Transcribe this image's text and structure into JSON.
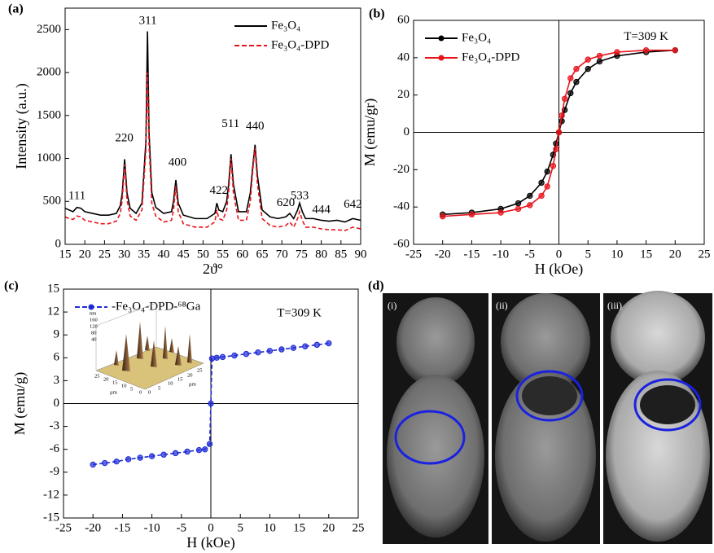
{
  "chart_data": [
    {
      "type": "line",
      "label": "(a)",
      "xlabel": "2ϑ°",
      "ylabel": "Intensity (a.u.)",
      "xlim": [
        15,
        90
      ],
      "xticks": [
        15,
        20,
        25,
        30,
        35,
        40,
        45,
        50,
        55,
        60,
        65,
        70,
        75,
        80,
        85,
        90
      ],
      "ylim": [
        0,
        2750
      ],
      "yticks": [
        0,
        500,
        1000,
        1500,
        2000,
        2500
      ],
      "legend": "upper right",
      "markers": false,
      "zero_lines": false,
      "x": [
        15,
        16,
        17,
        18,
        19,
        20,
        22,
        24,
        26,
        28,
        29,
        29.5,
        30.1,
        30.7,
        31.5,
        33,
        34.5,
        35.5,
        35.9,
        36.3,
        37,
        38,
        40,
        42,
        42.5,
        43.1,
        43.7,
        45,
        48,
        51,
        53,
        53.5,
        54,
        55,
        56,
        56.5,
        57.1,
        57.7,
        59,
        61,
        62,
        62.6,
        63.2,
        63.8,
        65,
        67,
        69,
        71,
        72,
        73,
        74,
        74.5,
        75.2,
        76,
        78,
        80,
        82,
        84,
        86,
        88,
        90
      ],
      "series": [
        {
          "name": "Fe₃O₄",
          "color": "#000000",
          "dash": false,
          "values": [
            420,
            400,
            380,
            430,
            420,
            380,
            360,
            340,
            340,
            360,
            450,
            600,
            990,
            600,
            420,
            360,
            480,
            1200,
            2480,
            1300,
            600,
            430,
            360,
            380,
            500,
            750,
            480,
            340,
            300,
            300,
            360,
            480,
            400,
            380,
            500,
            700,
            1050,
            700,
            380,
            380,
            600,
            900,
            1160,
            800,
            400,
            320,
            300,
            320,
            360,
            300,
            400,
            480,
            380,
            300,
            300,
            280,
            270,
            280,
            260,
            300,
            280
          ]
        },
        {
          "name": "Fe₃O₄-DPD",
          "color": "#e8141c",
          "dash": true,
          "values": [
            320,
            300,
            290,
            330,
            320,
            280,
            260,
            240,
            240,
            270,
            360,
            520,
            930,
            520,
            330,
            280,
            400,
            1100,
            2000,
            1150,
            480,
            330,
            260,
            280,
            400,
            680,
            380,
            240,
            200,
            200,
            260,
            400,
            300,
            280,
            400,
            620,
            1000,
            600,
            280,
            280,
            500,
            850,
            1120,
            700,
            300,
            220,
            200,
            220,
            260,
            200,
            300,
            380,
            280,
            200,
            200,
            180,
            170,
            170,
            160,
            200,
            180
          ]
        }
      ],
      "annotations": [
        {
          "text": "111",
          "x": 18,
          "y": 560
        },
        {
          "text": "220",
          "x": 30,
          "y": 1230
        },
        {
          "text": "311",
          "x": 36,
          "y": 2600
        },
        {
          "text": "400",
          "x": 43.5,
          "y": 950
        },
        {
          "text": "422",
          "x": 54,
          "y": 620
        },
        {
          "text": "511",
          "x": 57,
          "y": 1400
        },
        {
          "text": "440",
          "x": 63.2,
          "y": 1370
        },
        {
          "text": "620",
          "x": 71,
          "y": 480
        },
        {
          "text": "533",
          "x": 74.5,
          "y": 560
        },
        {
          "text": "444",
          "x": 80,
          "y": 400
        },
        {
          "text": "642",
          "x": 88,
          "y": 460
        }
      ]
    },
    {
      "type": "line",
      "label": "(b)",
      "xlabel": "H (kOe)",
      "ylabel": "M (emu/gr)",
      "xlim": [
        -25,
        25
      ],
      "xticks": [
        -25,
        -20,
        -15,
        -10,
        -5,
        0,
        5,
        10,
        15,
        20,
        25
      ],
      "ylim": [
        -60,
        60
      ],
      "yticks": [
        -60,
        -40,
        -20,
        0,
        20,
        40,
        60
      ],
      "legend": "upper left",
      "markers": true,
      "zero_lines": true,
      "x": [
        -20,
        -15,
        -10,
        -7,
        -5,
        -3,
        -2,
        -1,
        -0.5,
        0,
        0.5,
        1,
        2,
        3,
        5,
        7,
        10,
        15,
        20
      ],
      "series": [
        {
          "name": "Fe₃O₄",
          "color": "#000000",
          "dash": false,
          "values": [
            -44,
            -43,
            -41,
            -38,
            -34,
            -27,
            -21,
            -12,
            -6,
            0,
            6,
            12,
            21,
            27,
            34,
            38,
            41,
            43,
            44
          ]
        },
        {
          "name": "Fe₃O₄-DPD",
          "color": "#e8141c",
          "dash": false,
          "values": [
            -45,
            -44,
            -43,
            -41,
            -39,
            -34,
            -29,
            -18,
            -9,
            0,
            9,
            18,
            29,
            34,
            39,
            41,
            43,
            44,
            44
          ]
        }
      ],
      "annotations": [
        {
          "text": "T=309  K",
          "x": 15,
          "y": 51
        }
      ]
    },
    {
      "type": "line",
      "label": "(c)",
      "xlabel": "H (kOe)",
      "ylabel": "M (emu/g)",
      "xlim": [
        -25,
        25
      ],
      "xticks": [
        -25,
        -20,
        -15,
        -10,
        -5,
        0,
        5,
        10,
        15,
        20,
        25
      ],
      "ylim": [
        -15,
        15
      ],
      "yticks": [
        -15,
        -12,
        -9,
        -6,
        -3,
        0,
        3,
        6,
        9,
        12,
        15
      ],
      "legend": "upper left",
      "markers": true,
      "zero_lines": true,
      "x": [
        -20,
        -18,
        -16,
        -14,
        -12,
        -10,
        -8,
        -6,
        -4,
        -2,
        -1,
        -0.2,
        0,
        0.2,
        1,
        2,
        4,
        6,
        8,
        10,
        12,
        14,
        16,
        18,
        20
      ],
      "series": [
        {
          "name": "-Fe₃O₄-DPD-⁶⁸Ga",
          "color": "#1f2bd6",
          "dash": true,
          "values": [
            -8,
            -7.8,
            -7.6,
            -7.3,
            -7.1,
            -6.9,
            -6.7,
            -6.5,
            -6.3,
            -6.1,
            -6,
            -5.3,
            0,
            5.9,
            6,
            6.1,
            6.3,
            6.5,
            6.7,
            6.9,
            7.1,
            7.3,
            7.5,
            7.7,
            7.9
          ]
        }
      ],
      "annotations": [
        {
          "text": "T=309  K",
          "x": 15,
          "y": 11.8
        }
      ],
      "inset": {
        "zlabel": "nm",
        "zticks": [
          160,
          120,
          80,
          40
        ],
        "xlabel": "µm",
        "xticks": [
          25,
          20,
          15,
          10,
          5,
          0
        ],
        "ylabel": "µm",
        "yticks": [
          0,
          5,
          10,
          15,
          20,
          25
        ]
      }
    }
  ],
  "panel_d": {
    "label": "(d)",
    "images": [
      "(i)",
      "(ii)",
      "(iii)"
    ]
  }
}
